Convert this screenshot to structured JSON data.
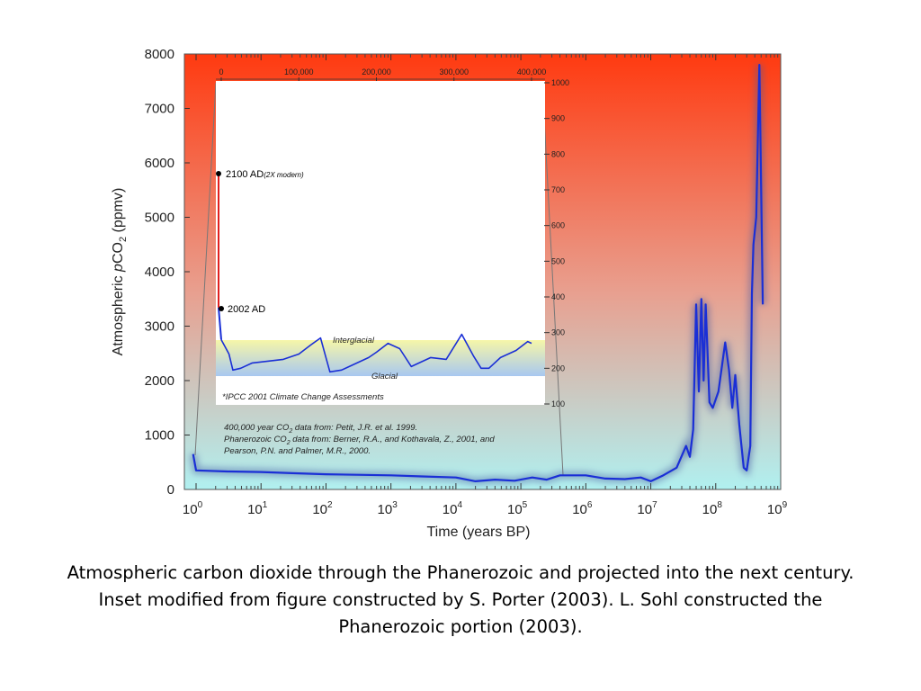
{
  "chart_data": {
    "type": "line",
    "xlabel": "Time (years BP)",
    "ylabel": "Atmospheric pCO2 (ppmv)",
    "x_scale": "log",
    "xlim": [
      1,
      1000000000
    ],
    "ylim": [
      0,
      8000
    ],
    "y_ticks": [
      "0",
      "1000",
      "2000",
      "3000",
      "4000",
      "5000",
      "6000",
      "7000",
      "8000"
    ],
    "x_ticks": [
      {
        "base": "10",
        "exp": "0"
      },
      {
        "base": "10",
        "exp": "1"
      },
      {
        "base": "10",
        "exp": "2"
      },
      {
        "base": "10",
        "exp": "3"
      },
      {
        "base": "10",
        "exp": "4"
      },
      {
        "base": "10",
        "exp": "5"
      },
      {
        "base": "10",
        "exp": "6"
      },
      {
        "base": "10",
        "exp": "7"
      },
      {
        "base": "10",
        "exp": "8"
      },
      {
        "base": "10",
        "exp": "9"
      }
    ],
    "background_gradient": [
      "#ff3a10",
      "#e8a090",
      "#b0f0f0"
    ],
    "series": [
      {
        "color": "#1a2fd6",
        "points": [
          [
            0.9,
            650
          ],
          [
            1,
            350
          ],
          [
            3,
            330
          ],
          [
            10,
            320
          ],
          [
            30,
            300
          ],
          [
            100,
            280
          ],
          [
            300,
            270
          ],
          [
            1000,
            260
          ],
          [
            3000,
            240
          ],
          [
            10000,
            220
          ],
          [
            20000,
            150
          ],
          [
            40000,
            180
          ],
          [
            80000,
            160
          ],
          [
            150000,
            220
          ],
          [
            250000,
            180
          ],
          [
            400000,
            260
          ],
          [
            1000000,
            260
          ],
          [
            2000000,
            200
          ],
          [
            4000000,
            190
          ],
          [
            7000000,
            220
          ],
          [
            10000000,
            150
          ],
          [
            15000000,
            250
          ],
          [
            25000000,
            400
          ],
          [
            35000000,
            800
          ],
          [
            40000000,
            600
          ],
          [
            45000000,
            1100
          ],
          [
            50000000,
            3400
          ],
          [
            55000000,
            1800
          ],
          [
            60000000,
            3500
          ],
          [
            65000000,
            2000
          ],
          [
            70000000,
            3400
          ],
          [
            80000000,
            1600
          ],
          [
            90000000,
            1500
          ],
          [
            110000000,
            1800
          ],
          [
            140000000,
            2700
          ],
          [
            160000000,
            2200
          ],
          [
            180000000,
            1500
          ],
          [
            200000000,
            2100
          ],
          [
            230000000,
            1200
          ],
          [
            270000000,
            400
          ],
          [
            300000000,
            350
          ],
          [
            340000000,
            800
          ],
          [
            360000000,
            3600
          ],
          [
            380000000,
            4500
          ],
          [
            420000000,
            5000
          ],
          [
            470000000,
            7800
          ],
          [
            500000000,
            5500
          ],
          [
            530000000,
            3400
          ]
        ]
      }
    ],
    "inset": {
      "x_ticks": [
        "0",
        "100,000",
        "200,000",
        "300,000",
        "400,000"
      ],
      "xlim": [
        0,
        400000
      ],
      "y_ticks": [
        "100",
        "200",
        "300",
        "400",
        "500",
        "600",
        "700",
        "800",
        "900",
        "1000"
      ],
      "ylim": [
        100,
        1000
      ],
      "annotations": {
        "ad2100": "2100 AD",
        "ad2100_note": "(2X modern)",
        "ad2002": "2002 AD",
        "interglacial": "Interglacial",
        "glacial": "Glacial",
        "ipcc": "*IPCC 2001 Climate Change Assessments"
      },
      "projection": [
        [
          0,
          370
        ],
        [
          0,
          740
        ]
      ],
      "series": [
        [
          0,
          280
        ],
        [
          5000,
          260
        ],
        [
          10000,
          240
        ],
        [
          15000,
          195
        ],
        [
          25000,
          200
        ],
        [
          40000,
          215
        ],
        [
          60000,
          220
        ],
        [
          80000,
          225
        ],
        [
          100000,
          240
        ],
        [
          115000,
          265
        ],
        [
          128000,
          285
        ],
        [
          135000,
          230
        ],
        [
          140000,
          190
        ],
        [
          155000,
          195
        ],
        [
          170000,
          210
        ],
        [
          190000,
          230
        ],
        [
          200000,
          245
        ],
        [
          215000,
          270
        ],
        [
          230000,
          255
        ],
        [
          245000,
          205
        ],
        [
          255000,
          215
        ],
        [
          270000,
          230
        ],
        [
          290000,
          225
        ],
        [
          310000,
          295
        ],
        [
          325000,
          235
        ],
        [
          335000,
          200
        ],
        [
          345000,
          200
        ],
        [
          360000,
          230
        ],
        [
          380000,
          250
        ],
        [
          395000,
          275
        ],
        [
          400000,
          270
        ]
      ]
    },
    "credits": [
      {
        "text": "400,000 year CO",
        "sub": "2",
        "rest": " data from: Petit, J.R. et al. 1999."
      },
      {
        "text": "Phanerozoic CO",
        "sub": "2",
        "rest": " data from: Berner, R.A., and Kothavala, Z., 2001, and"
      },
      {
        "text": "  Pearson, P.N. and Palmer, M.R., 2000.",
        "sub": "",
        "rest": ""
      }
    ]
  },
  "caption": "Atmospheric carbon dioxide through the Phanerozoic and projected into the next century. Inset modified from figure constructed by S. Porter (2003). L. Sohl constructed the Phanerozoic portion (2003)."
}
